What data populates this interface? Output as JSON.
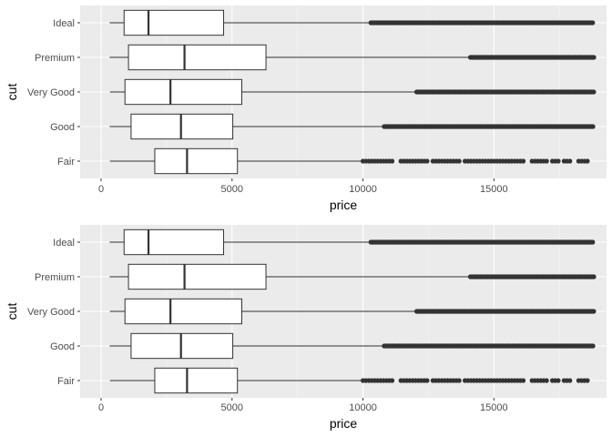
{
  "chart_data": [
    {
      "type": "boxplot",
      "orientation": "horizontal",
      "xlabel": "price",
      "ylabel": "cut",
      "xlim": [
        -800,
        19300
      ],
      "xticks": [
        0,
        5000,
        10000,
        15000
      ],
      "grid": true,
      "legend": "none",
      "categories": [
        "Ideal",
        "Premium",
        "Very Good",
        "Good",
        "Fair"
      ],
      "boxes": [
        {
          "cut": "Ideal",
          "whisker_low": 326,
          "q1": 878,
          "median": 1810,
          "q3": 4678,
          "whisker_high": 10300
        },
        {
          "cut": "Premium",
          "whisker_low": 326,
          "q1": 1046,
          "median": 3185,
          "q3": 6296,
          "whisker_high": 14100
        },
        {
          "cut": "Very Good",
          "whisker_low": 336,
          "q1": 912,
          "median": 2648,
          "q3": 5373,
          "whisker_high": 12050
        },
        {
          "cut": "Good",
          "whisker_low": 327,
          "q1": 1145,
          "median": 3050,
          "q3": 5028,
          "whisker_high": 10810
        },
        {
          "cut": "Fair",
          "whisker_low": 337,
          "q1": 2050,
          "median": 3282,
          "q3": 5206,
          "whisker_high": 10000
        }
      ],
      "outlier_ranges": [
        {
          "cut": "Ideal",
          "from": 10300,
          "to": 18806
        },
        {
          "cut": "Premium",
          "from": 14100,
          "to": 18823
        },
        {
          "cut": "Very Good",
          "from": 12050,
          "to": 18818
        },
        {
          "cut": "Good",
          "from": 10810,
          "to": 18788
        },
        {
          "cut": "Fair",
          "from": 10000,
          "to": 18574
        }
      ]
    },
    {
      "type": "boxplot",
      "orientation": "horizontal",
      "xlabel": "price",
      "ylabel": "cut",
      "xlim": [
        -800,
        19300
      ],
      "xticks": [
        0,
        5000,
        10000,
        15000
      ],
      "grid": true,
      "legend": "none",
      "categories": [
        "Ideal",
        "Premium",
        "Very Good",
        "Good",
        "Fair"
      ],
      "boxes": [
        {
          "cut": "Ideal",
          "whisker_low": 326,
          "q1": 878,
          "median": 1810,
          "q3": 4678,
          "whisker_high": 10300
        },
        {
          "cut": "Premium",
          "whisker_low": 326,
          "q1": 1046,
          "median": 3185,
          "q3": 6296,
          "whisker_high": 14100
        },
        {
          "cut": "Very Good",
          "whisker_low": 336,
          "q1": 912,
          "median": 2648,
          "q3": 5373,
          "whisker_high": 12050
        },
        {
          "cut": "Good",
          "whisker_low": 327,
          "q1": 1145,
          "median": 3050,
          "q3": 5028,
          "whisker_high": 10810
        },
        {
          "cut": "Fair",
          "whisker_low": 337,
          "q1": 2050,
          "median": 3282,
          "q3": 5206,
          "whisker_high": 10000
        }
      ],
      "outlier_ranges": [
        {
          "cut": "Ideal",
          "from": 10300,
          "to": 18806
        },
        {
          "cut": "Premium",
          "from": 14100,
          "to": 18823
        },
        {
          "cut": "Very Good",
          "from": 12050,
          "to": 18818
        },
        {
          "cut": "Good",
          "from": 10810,
          "to": 18788
        },
        {
          "cut": "Fair",
          "from": 10000,
          "to": 18574
        }
      ]
    }
  ],
  "colors": {
    "panel_background": "#ebebeb",
    "grid_major": "#ffffff",
    "grid_minor": "#f5f5f5",
    "box_fill": "#ffffff",
    "box_stroke": "#333333",
    "outlier": "#333333"
  }
}
